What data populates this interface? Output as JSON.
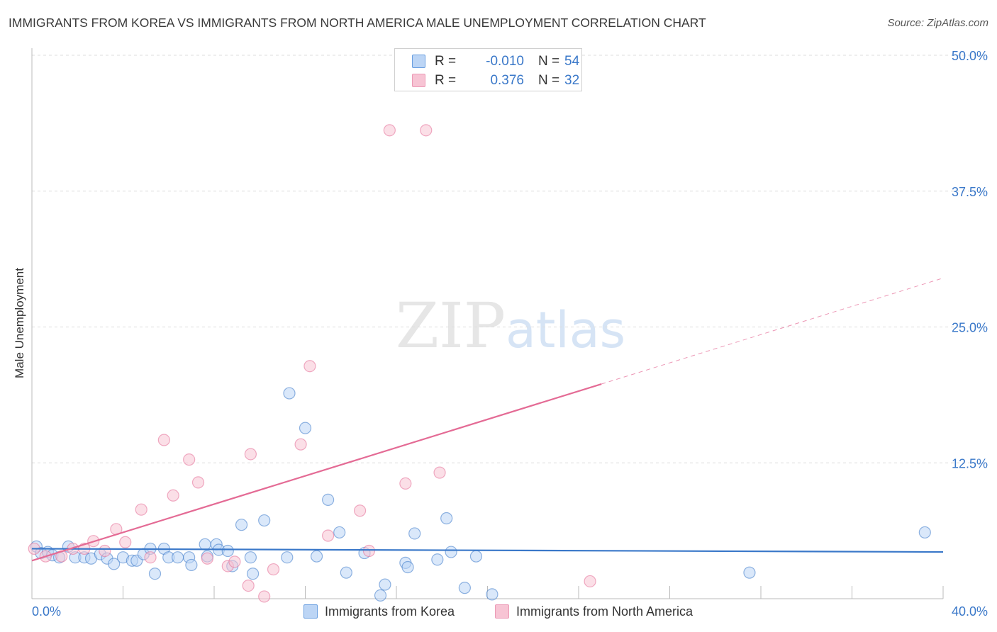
{
  "chart_data": {
    "type": "scatter",
    "title": "IMMIGRANTS FROM KOREA VS IMMIGRANTS FROM NORTH AMERICA MALE UNEMPLOYMENT CORRELATION CHART",
    "source": "Source: ZipAtlas.com",
    "xlabel": "",
    "ylabel": "Male Unemployment",
    "xlim": [
      0,
      40
    ],
    "ylim": [
      0,
      50
    ],
    "x_tick_labels": [
      "0.0%",
      "40.0%"
    ],
    "y_ticks": [
      12.5,
      25.0,
      37.5,
      50.0
    ],
    "y_tick_labels": [
      "12.5%",
      "25.0%",
      "37.5%",
      "50.0%"
    ],
    "watermark": "ZIPatlas",
    "legend": [
      {
        "r_label": "R =",
        "r_value": "-0.010",
        "n_label": "N =",
        "n_value": "54"
      },
      {
        "r_label": "R =",
        "r_value": "0.376",
        "n_label": "N =",
        "n_value": "32"
      }
    ],
    "series": [
      {
        "name": "Immigrants from Korea",
        "color": "#3a78c9",
        "fill": "#bcd5f5",
        "trend": {
          "x": [
            0,
            40
          ],
          "y": [
            4.6,
            4.3
          ],
          "dashed_from": null
        },
        "points": [
          [
            0.2,
            4.8
          ],
          [
            0.4,
            4.2
          ],
          [
            0.7,
            4.3
          ],
          [
            0.9,
            4.0
          ],
          [
            1.2,
            3.8
          ],
          [
            1.6,
            4.8
          ],
          [
            1.9,
            3.8
          ],
          [
            2.3,
            3.8
          ],
          [
            2.6,
            3.7
          ],
          [
            3.0,
            4.1
          ],
          [
            3.3,
            3.7
          ],
          [
            3.6,
            3.2
          ],
          [
            4.0,
            3.8
          ],
          [
            4.4,
            3.5
          ],
          [
            4.6,
            3.5
          ],
          [
            4.9,
            4.1
          ],
          [
            5.2,
            4.6
          ],
          [
            5.4,
            2.3
          ],
          [
            5.8,
            4.6
          ],
          [
            6.0,
            3.8
          ],
          [
            6.4,
            3.8
          ],
          [
            6.9,
            3.8
          ],
          [
            7.0,
            3.1
          ],
          [
            7.6,
            5.0
          ],
          [
            7.7,
            3.9
          ],
          [
            8.1,
            5.0
          ],
          [
            8.2,
            4.5
          ],
          [
            8.6,
            4.4
          ],
          [
            8.8,
            3.0
          ],
          [
            9.2,
            6.8
          ],
          [
            9.6,
            3.8
          ],
          [
            9.7,
            2.3
          ],
          [
            10.2,
            7.2
          ],
          [
            11.2,
            3.8
          ],
          [
            11.3,
            18.9
          ],
          [
            12.0,
            15.7
          ],
          [
            12.5,
            3.9
          ],
          [
            13.0,
            9.1
          ],
          [
            13.5,
            6.1
          ],
          [
            13.8,
            2.4
          ],
          [
            14.6,
            4.2
          ],
          [
            15.3,
            0.3
          ],
          [
            15.5,
            1.3
          ],
          [
            16.4,
            3.3
          ],
          [
            16.5,
            2.9
          ],
          [
            16.8,
            6.0
          ],
          [
            17.8,
            3.6
          ],
          [
            18.2,
            7.4
          ],
          [
            18.4,
            4.3
          ],
          [
            19.0,
            1.0
          ],
          [
            19.5,
            3.9
          ],
          [
            20.2,
            0.4
          ],
          [
            31.5,
            2.4
          ],
          [
            39.2,
            6.1
          ]
        ]
      },
      {
        "name": "Immigrants from North America",
        "color": "#e46b95",
        "fill": "#f7c4d4",
        "trend": {
          "x": [
            0,
            40
          ],
          "y": [
            3.5,
            29.5
          ],
          "dashed_from": 25
        },
        "points": [
          [
            0.1,
            4.6
          ],
          [
            0.6,
            3.9
          ],
          [
            1.3,
            3.9
          ],
          [
            1.8,
            4.6
          ],
          [
            2.3,
            4.6
          ],
          [
            2.7,
            5.3
          ],
          [
            3.2,
            4.4
          ],
          [
            3.7,
            6.4
          ],
          [
            4.1,
            5.2
          ],
          [
            4.8,
            8.2
          ],
          [
            5.2,
            3.8
          ],
          [
            5.8,
            14.6
          ],
          [
            6.2,
            9.5
          ],
          [
            6.9,
            12.8
          ],
          [
            7.3,
            10.7
          ],
          [
            7.7,
            3.7
          ],
          [
            8.6,
            3.0
          ],
          [
            8.9,
            3.4
          ],
          [
            9.5,
            1.2
          ],
          [
            9.6,
            13.3
          ],
          [
            10.2,
            0.2
          ],
          [
            10.6,
            2.7
          ],
          [
            11.8,
            14.2
          ],
          [
            12.2,
            21.4
          ],
          [
            13.0,
            5.8
          ],
          [
            14.4,
            8.1
          ],
          [
            14.8,
            4.4
          ],
          [
            15.7,
            43.1
          ],
          [
            16.4,
            10.6
          ],
          [
            17.3,
            43.1
          ],
          [
            17.9,
            11.6
          ],
          [
            24.5,
            1.6
          ]
        ]
      }
    ]
  }
}
